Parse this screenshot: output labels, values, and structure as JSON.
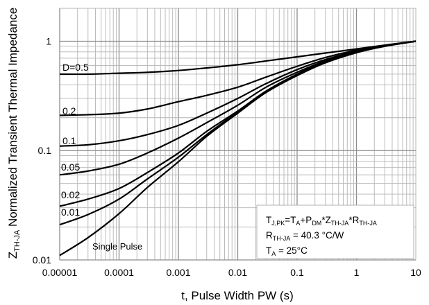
{
  "chart_data": {
    "type": "line",
    "xscale": "log",
    "yscale": "log",
    "xlim": [
      1e-05,
      10
    ],
    "ylim": [
      0.01,
      2
    ],
    "grid": true,
    "xlabel": "t, Pulse Width PW (s)",
    "ylabel": {
      "main": "Z",
      "sub": "TH-JA",
      "rest": " Normalized Transient Thermal Impedance"
    },
    "xticks": [
      "0.00001",
      "0.0001",
      "0.001",
      "0.01",
      "0.1",
      "1",
      "10"
    ],
    "xtick_values": [
      1e-05,
      0.0001,
      0.001,
      0.01,
      0.1,
      1,
      10
    ],
    "yticks": [
      "0.01",
      "0.1",
      "1"
    ],
    "ytick_values": [
      0.01,
      0.1,
      1
    ],
    "x": [
      1e-05,
      3e-05,
      0.0001,
      0.0003,
      0.001,
      0.003,
      0.01,
      0.03,
      0.1,
      0.3,
      1,
      3,
      10
    ],
    "series": [
      {
        "name": "D=0.5",
        "values": [
          0.5,
          0.5,
          0.51,
          0.52,
          0.54,
          0.57,
          0.61,
          0.66,
          0.72,
          0.78,
          0.85,
          0.92,
          1.0
        ]
      },
      {
        "name": "0.2",
        "values": [
          0.21,
          0.213,
          0.22,
          0.24,
          0.28,
          0.32,
          0.38,
          0.47,
          0.59,
          0.71,
          0.83,
          0.92,
          1.0
        ]
      },
      {
        "name": "0.1",
        "values": [
          0.11,
          0.113,
          0.123,
          0.14,
          0.17,
          0.22,
          0.3,
          0.41,
          0.55,
          0.68,
          0.81,
          0.91,
          1.0
        ]
      },
      {
        "name": "0.05",
        "values": [
          0.06,
          0.065,
          0.075,
          0.095,
          0.13,
          0.18,
          0.26,
          0.38,
          0.52,
          0.66,
          0.8,
          0.91,
          1.0
        ]
      },
      {
        "name": "0.02",
        "values": [
          0.031,
          0.036,
          0.045,
          0.063,
          0.095,
          0.15,
          0.23,
          0.35,
          0.5,
          0.65,
          0.79,
          0.9,
          1.0
        ]
      },
      {
        "name": "0.01",
        "values": [
          0.021,
          0.026,
          0.036,
          0.055,
          0.087,
          0.14,
          0.225,
          0.345,
          0.49,
          0.64,
          0.79,
          0.9,
          1.0
        ]
      },
      {
        "name": "Single Pulse",
        "values": [
          0.011,
          0.016,
          0.0265,
          0.046,
          0.079,
          0.135,
          0.22,
          0.34,
          0.485,
          0.635,
          0.785,
          0.9,
          1.0
        ]
      }
    ],
    "annotation": {
      "lines": [
        [
          {
            "t": "T"
          },
          {
            "s": "J,PK"
          },
          {
            "t": "=T"
          },
          {
            "s": "A"
          },
          {
            "t": "+P"
          },
          {
            "s": "DM"
          },
          {
            "t": "*Z"
          },
          {
            "s": "TH-JA"
          },
          {
            "t": "*R"
          },
          {
            "s": "TH-JA"
          }
        ],
        [
          {
            "t": "R"
          },
          {
            "s": "TH-JA"
          },
          {
            "t": " = 40.3 °C/W"
          }
        ],
        [
          {
            "t": "T"
          },
          {
            "s": "A"
          },
          {
            "t": " = 25°C"
          }
        ]
      ],
      "placement": "bottom-right"
    },
    "line_color": "#000000",
    "grid_color": "#b4b4b4"
  }
}
